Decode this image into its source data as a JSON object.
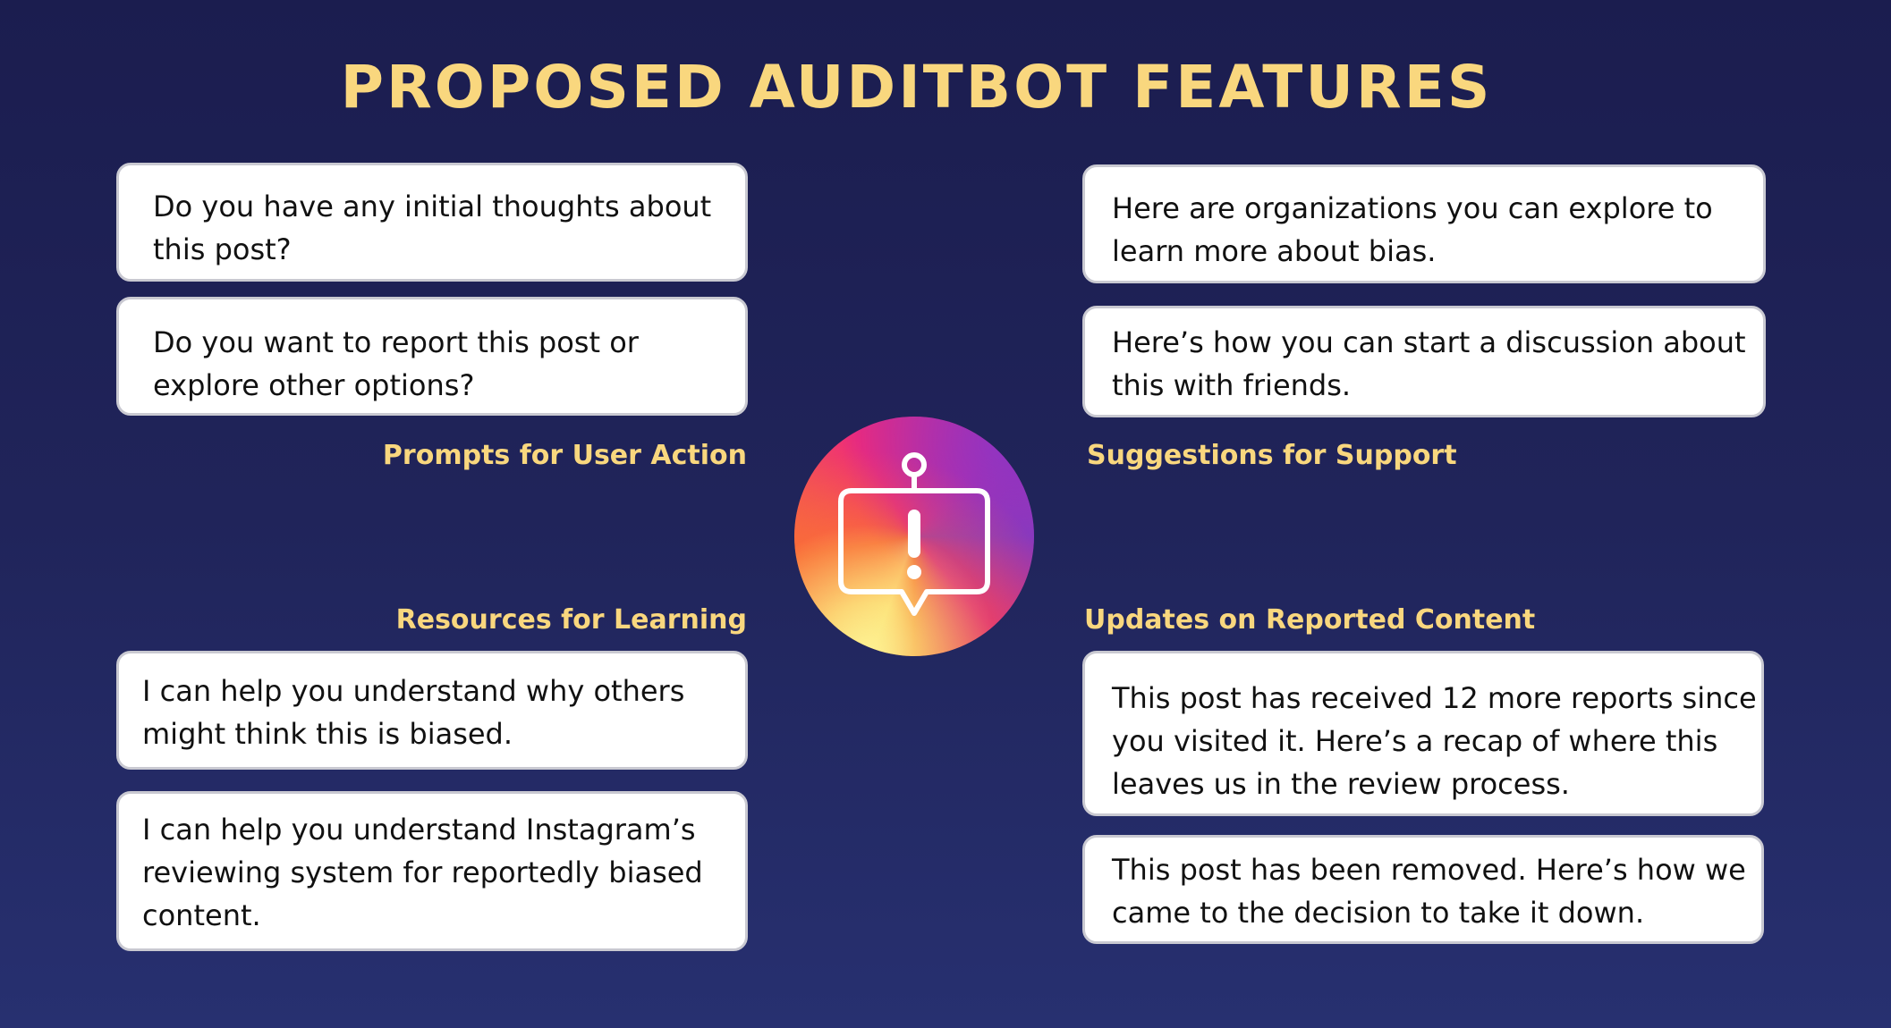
{
  "title": "PROPOSED AUDITBOT FEATURES",
  "sections": {
    "prompts": {
      "label": "Prompts for User Action",
      "bubbles": [
        {
          "text": [
            "Do you have any initial thoughts about",
            "this post?"
          ]
        },
        {
          "text": [
            "Do you want to report this post or",
            "explore other options?"
          ]
        }
      ]
    },
    "support": {
      "label": "Suggestions for Support",
      "bubbles": [
        {
          "text": [
            "Here are organizations you can explore to",
            "learn more about bias."
          ]
        },
        {
          "text": [
            "Here’s how you can start a discussion about",
            "this with friends."
          ]
        }
      ]
    },
    "learning": {
      "label": "Resources for Learning",
      "bubbles": [
        {
          "text": [
            "I can help you understand why others",
            "might think this is biased."
          ]
        },
        {
          "text": [
            "I can help you understand Instagram’s",
            "reviewing system for reportedly biased",
            "content."
          ]
        }
      ]
    },
    "updates": {
      "label": "Updates on Reported Content",
      "bubbles": [
        {
          "text": [
            "This post has received 12 more reports since",
            "you visited it. Here’s a recap of where this",
            "leaves us in the review process."
          ]
        },
        {
          "text": [
            "This post has been removed. Here’s how we",
            "came to the decision to take it down."
          ]
        }
      ]
    }
  },
  "center_icon": "alert-chat-bubble-icon",
  "colors": {
    "background": "#1e2156",
    "accent": "#f9d77e",
    "bubble": "#ffffff",
    "bubble_border": "#c9c9d1"
  }
}
